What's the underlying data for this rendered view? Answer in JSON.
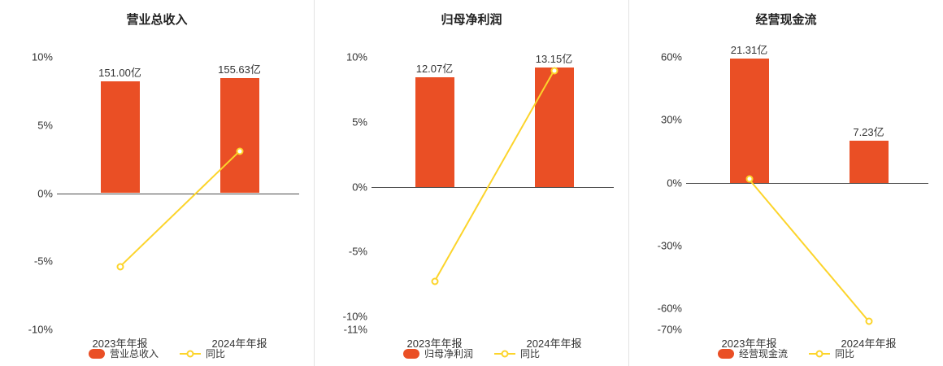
{
  "colors": {
    "bar": "#ea4f25",
    "line": "#fcd42b",
    "axis_text": "#333333",
    "zero_line": "#4d4d4d",
    "divider": "#e2e2e2",
    "background": "#ffffff"
  },
  "chart_data": [
    {
      "type": "bar",
      "title": "营业总收入",
      "categories": [
        "2023年年报",
        "2024年年报"
      ],
      "bar_series": {
        "name": "营业总收入",
        "value_labels": [
          "151.00亿",
          "155.63亿"
        ],
        "plotted_pct": [
          8.2,
          8.45
        ]
      },
      "line_series": {
        "name": "同比",
        "values_pct": [
          -5.4,
          3.07
        ]
      },
      "y_ticks": [
        "10%",
        "5%",
        "0%",
        "-5%",
        "-10%"
      ],
      "y_tick_values": [
        10,
        5,
        0,
        -5,
        -10
      ],
      "ylim": [
        -10,
        10
      ],
      "legend": [
        "营业总收入",
        "同比"
      ],
      "grid": "off",
      "legend_position": "bottom"
    },
    {
      "type": "bar",
      "title": "归母净利润",
      "categories": [
        "2023年年报",
        "2024年年报"
      ],
      "bar_series": {
        "name": "归母净利润",
        "value_labels": [
          "12.07亿",
          "13.15亿"
        ],
        "plotted_pct": [
          8.45,
          9.2
        ]
      },
      "line_series": {
        "name": "同比",
        "values_pct": [
          -7.3,
          8.95
        ]
      },
      "y_ticks": [
        "10%",
        "5%",
        "0%",
        "-5%",
        "-10%",
        "-11%"
      ],
      "y_tick_values": [
        10,
        5,
        0,
        -5,
        -10,
        -11
      ],
      "ylim": [
        -11,
        10
      ],
      "legend": [
        "归母净利润",
        "同比"
      ],
      "grid": "off",
      "legend_position": "bottom"
    },
    {
      "type": "bar",
      "title": "经营现金流",
      "categories": [
        "2023年年报",
        "2024年年报"
      ],
      "bar_series": {
        "name": "经营现金流",
        "value_labels": [
          "21.31亿",
          "7.23亿"
        ],
        "plotted_pct": [
          59.2,
          20.1
        ]
      },
      "line_series": {
        "name": "同比",
        "values_pct": [
          1.6,
          -66.07
        ]
      },
      "y_ticks": [
        "60%",
        "30%",
        "0%",
        "-30%",
        "-60%",
        "-70%"
      ],
      "y_tick_values": [
        60,
        30,
        0,
        -30,
        -60,
        -70
      ],
      "ylim": [
        -70,
        60
      ],
      "legend": [
        "经营现金流",
        "同比"
      ],
      "grid": "off",
      "legend_position": "bottom"
    }
  ]
}
